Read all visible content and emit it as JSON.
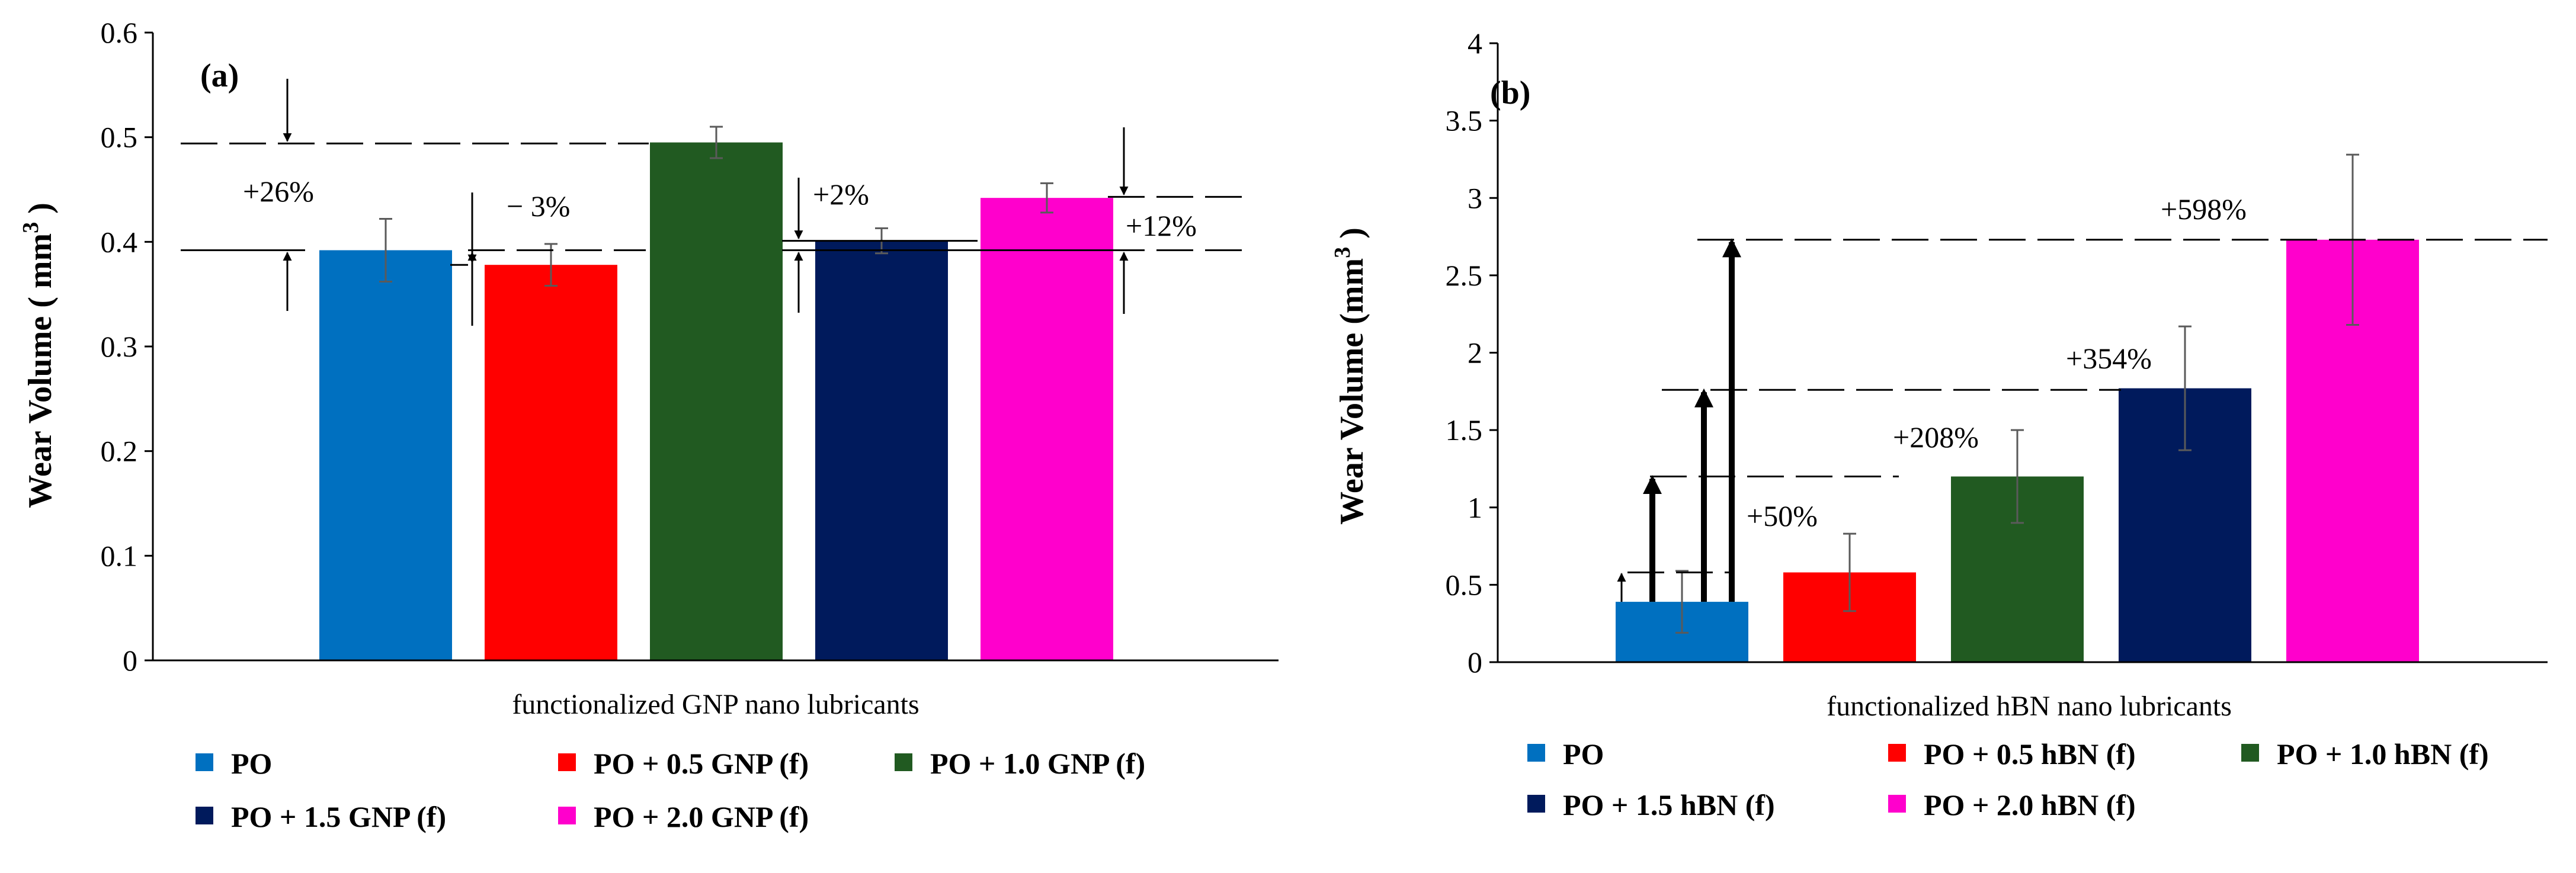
{
  "chart_data": [
    {
      "type": "bar",
      "panel_label": "(a)",
      "ylabel": "Wear Volume ( mm3 )",
      "xlabel": "functionalized GNP nano lubricants",
      "ylim": [
        0,
        0.6
      ],
      "yticks": [
        "0",
        "0.1",
        "0.2",
        "0.3",
        "0.4",
        "0.5",
        "0.6"
      ],
      "tick_values": [
        0,
        0.1,
        0.2,
        0.3,
        0.4,
        0.5,
        0.6
      ],
      "categories": [
        "PO",
        "PO + 0.5 GNP (f)",
        "PO + 1.0 GNP (f)",
        "PO + 1.5 GNP (f)",
        "PO + 2.0 GNP (f)"
      ],
      "values": [
        0.392,
        0.378,
        0.495,
        0.401,
        0.442
      ],
      "errors": [
        0.03,
        0.02,
        0.015,
        0.012,
        0.014
      ],
      "colors": [
        "#0070c0",
        "#ff0000",
        "#215a21",
        "#001a5c",
        "#ff00cc"
      ],
      "annotations": [
        "+26%",
        "− 3%",
        "+2%",
        "+12%"
      ]
    },
    {
      "type": "bar",
      "panel_label": "(b)",
      "ylabel": "Wear Volume (mm3 )",
      "xlabel": "functionalized hBN nano lubricants",
      "ylim": [
        0,
        4
      ],
      "yticks": [
        "0",
        "0.5",
        "1",
        "1.5",
        "2",
        "2.5",
        "3",
        "3.5",
        "4"
      ],
      "tick_values": [
        0,
        0.5,
        1,
        1.5,
        2,
        2.5,
        3,
        3.5,
        4
      ],
      "categories": [
        "PO",
        "PO + 0.5 hBN (f)",
        "PO + 1.0 hBN (f)",
        "PO + 1.5 hBN (f)",
        "PO + 2.0 hBN (f)"
      ],
      "values": [
        0.39,
        0.58,
        1.2,
        1.77,
        2.73
      ],
      "errors": [
        0.2,
        0.25,
        0.3,
        0.4,
        0.55
      ],
      "colors": [
        "#0070c0",
        "#ff0000",
        "#215a21",
        "#001a5c",
        "#ff00cc"
      ],
      "annotations": [
        "+50%",
        "+208%",
        "+354%",
        "+598%"
      ]
    }
  ],
  "legend_a": [
    {
      "label": "PO",
      "color": "#0070c0"
    },
    {
      "label": "PO + 0.5 GNP (f)",
      "color": "#ff0000"
    },
    {
      "label": "PO + 1.0 GNP (f)",
      "color": "#215a21"
    },
    {
      "label": "PO + 1.5 GNP (f)",
      "color": "#001a5c"
    },
    {
      "label": "PO + 2.0 GNP (f)",
      "color": "#ff00cc"
    }
  ],
  "legend_b": [
    {
      "label": "PO",
      "color": "#0070c0"
    },
    {
      "label": "PO + 0.5 hBN (f)",
      "color": "#ff0000"
    },
    {
      "label": "PO + 1.0 hBN (f)",
      "color": "#215a21"
    },
    {
      "label": "PO + 1.5 hBN (f)",
      "color": "#001a5c"
    },
    {
      "label": "PO + 2.0 hBN (f)",
      "color": "#ff00cc"
    }
  ]
}
